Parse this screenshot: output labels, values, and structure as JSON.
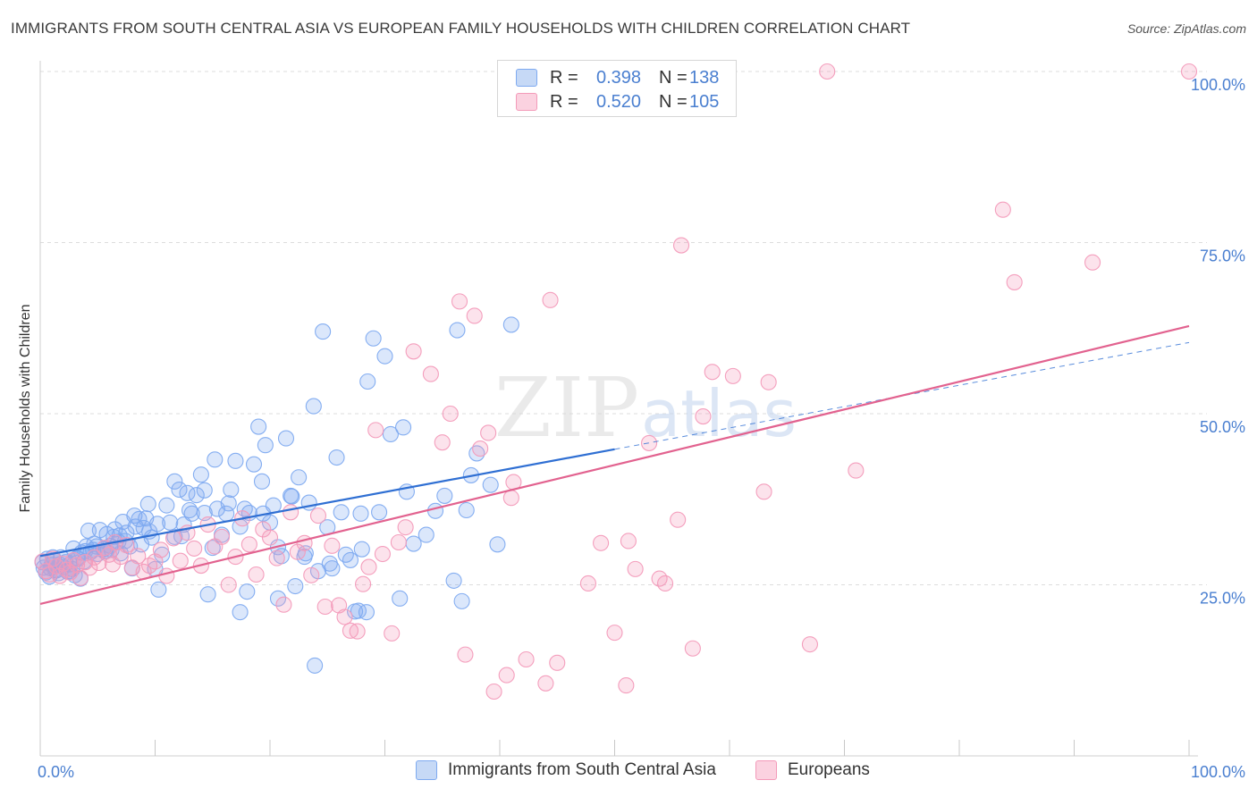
{
  "title": "IMMIGRANTS FROM SOUTH CENTRAL ASIA VS EUROPEAN FAMILY HOUSEHOLDS WITH CHILDREN CORRELATION CHART",
  "source": "Source: ZipAtlas.com",
  "watermark": {
    "zip": "ZIP",
    "atlas": "atlas"
  },
  "legend": {
    "rows": [
      {
        "r_label": "R = ",
        "r_value": "0.398",
        "n_label": "N = ",
        "n_value": "138",
        "color": "#7eaaf0"
      },
      {
        "r_label": "R = ",
        "r_value": "0.520",
        "n_label": "N = ",
        "n_value": "105",
        "color": "#f39ab9"
      }
    ]
  },
  "bottom_legend": {
    "series1": "Immigrants from South Central Asia",
    "series2": "Europeans"
  },
  "chart_data": {
    "type": "scatter",
    "title": "IMMIGRANTS FROM SOUTH CENTRAL ASIA VS EUROPEAN FAMILY HOUSEHOLDS WITH CHILDREN CORRELATION CHART",
    "xlabel": "",
    "ylabel": "Family Households with Children",
    "xlim": [
      0,
      100
    ],
    "ylim": [
      0,
      100
    ],
    "x_tick_labels": [
      "0.0%",
      "100.0%"
    ],
    "y_tick_labels": [
      "25.0%",
      "50.0%",
      "75.0%",
      "100.0%"
    ],
    "y_ticks": [
      25,
      50,
      75,
      100
    ],
    "grid": true,
    "legend_position": "top-center",
    "series": [
      {
        "name": "Immigrants from South Central Asia",
        "color": "#7eaaf0",
        "line_color": "#2f6fd3",
        "trend": {
          "x": [
            0,
            50
          ],
          "y": [
            29.2,
            44.8
          ],
          "dashed_extension_x": [
            50,
            100
          ],
          "dashed_extension_y": [
            44.8,
            60.4
          ]
        },
        "points": [
          [
            0.3,
            27.5
          ],
          [
            0.6,
            28.8
          ],
          [
            0.8,
            26.2
          ],
          [
            1.0,
            27.9
          ],
          [
            1.2,
            28.6
          ],
          [
            1.4,
            27.1
          ],
          [
            1.6,
            26.7
          ],
          [
            1.8,
            29.0
          ],
          [
            2.0,
            27.6
          ],
          [
            2.2,
            28.3
          ],
          [
            2.4,
            26.9
          ],
          [
            2.6,
            28.0
          ],
          [
            2.8,
            27.3
          ],
          [
            3.0,
            26.4
          ],
          [
            3.2,
            28.9
          ],
          [
            3.5,
            25.9
          ],
          [
            3.8,
            28.4
          ],
          [
            4.0,
            30.6
          ],
          [
            4.4,
            29.8
          ],
          [
            4.7,
            31.0
          ],
          [
            5.0,
            29.5
          ],
          [
            5.2,
            33.0
          ],
          [
            5.5,
            30.2
          ],
          [
            5.8,
            32.4
          ],
          [
            6.1,
            30.7
          ],
          [
            6.5,
            33.1
          ],
          [
            6.8,
            31.3
          ],
          [
            7.2,
            34.2
          ],
          [
            7.5,
            32.6
          ],
          [
            7.8,
            30.6
          ],
          [
            8.2,
            35.1
          ],
          [
            8.6,
            34.6
          ],
          [
            9.0,
            33.3
          ],
          [
            9.4,
            36.8
          ],
          [
            9.7,
            31.9
          ],
          [
            10.0,
            27.3
          ],
          [
            10.3,
            24.3
          ],
          [
            10.6,
            29.4
          ],
          [
            11.0,
            36.6
          ],
          [
            11.3,
            34.1
          ],
          [
            11.7,
            32.0
          ],
          [
            12.1,
            38.9
          ],
          [
            12.5,
            33.8
          ],
          [
            12.8,
            38.4
          ],
          [
            13.2,
            35.4
          ],
          [
            13.6,
            38.1
          ],
          [
            14.0,
            41.1
          ],
          [
            14.3,
            35.5
          ],
          [
            14.6,
            23.6
          ],
          [
            15.0,
            30.4
          ],
          [
            15.4,
            36.1
          ],
          [
            15.8,
            32.3
          ],
          [
            16.2,
            35.4
          ],
          [
            16.6,
            38.9
          ],
          [
            17.0,
            43.1
          ],
          [
            17.4,
            33.5
          ],
          [
            17.8,
            36.1
          ],
          [
            18.2,
            35.5
          ],
          [
            18.6,
            42.6
          ],
          [
            19.0,
            48.1
          ],
          [
            19.3,
            40.1
          ],
          [
            19.6,
            45.4
          ],
          [
            20.0,
            34.1
          ],
          [
            20.3,
            36.6
          ],
          [
            20.7,
            30.5
          ],
          [
            21.0,
            29.2
          ],
          [
            21.4,
            46.4
          ],
          [
            21.8,
            38.0
          ],
          [
            22.2,
            24.8
          ],
          [
            22.5,
            40.7
          ],
          [
            23.0,
            29.1
          ],
          [
            23.4,
            37.0
          ],
          [
            23.8,
            51.1
          ],
          [
            24.2,
            27.0
          ],
          [
            24.6,
            62.0
          ],
          [
            25.0,
            33.4
          ],
          [
            25.4,
            27.4
          ],
          [
            25.8,
            43.6
          ],
          [
            26.2,
            35.6
          ],
          [
            26.6,
            29.4
          ],
          [
            27.0,
            28.6
          ],
          [
            27.4,
            21.1
          ],
          [
            28.0,
            30.2
          ],
          [
            28.5,
            54.7
          ],
          [
            29.0,
            61.0
          ],
          [
            29.5,
            35.6
          ],
          [
            30.0,
            58.4
          ],
          [
            30.5,
            47.0
          ],
          [
            31.3,
            23.0
          ],
          [
            31.6,
            48.0
          ],
          [
            32.5,
            31.0
          ],
          [
            33.6,
            32.3
          ],
          [
            34.4,
            35.8
          ],
          [
            35.2,
            38.0
          ],
          [
            36.0,
            25.6
          ],
          [
            36.3,
            62.2
          ],
          [
            36.7,
            22.6
          ],
          [
            37.1,
            35.9
          ],
          [
            37.5,
            41.0
          ],
          [
            38.0,
            44.2
          ],
          [
            39.2,
            39.6
          ],
          [
            39.8,
            30.9
          ],
          [
            41.0,
            63.0
          ],
          [
            21.9,
            37.9
          ],
          [
            18.0,
            24.0
          ],
          [
            15.2,
            43.3
          ],
          [
            13.0,
            35.9
          ],
          [
            12.3,
            32.1
          ],
          [
            11.7,
            40.1
          ],
          [
            9.2,
            34.7
          ],
          [
            8.8,
            30.9
          ],
          [
            8.0,
            27.4
          ],
          [
            7.0,
            29.6
          ],
          [
            6.2,
            30.1
          ],
          [
            5.6,
            29.9
          ],
          [
            4.6,
            30.1
          ],
          [
            4.2,
            32.9
          ],
          [
            3.6,
            29.7
          ],
          [
            2.9,
            30.3
          ],
          [
            1.1,
            29.0
          ],
          [
            23.9,
            13.2
          ],
          [
            28.4,
            21.0
          ],
          [
            27.7,
            21.2
          ],
          [
            17.4,
            21.0
          ],
          [
            20.7,
            23.0
          ],
          [
            25.2,
            28.1
          ],
          [
            23.1,
            29.6
          ],
          [
            19.4,
            35.4
          ],
          [
            16.4,
            36.9
          ],
          [
            14.3,
            38.8
          ],
          [
            10.2,
            33.9
          ],
          [
            9.5,
            32.8
          ],
          [
            8.3,
            33.5
          ],
          [
            7.4,
            31.4
          ],
          [
            6.9,
            32.2
          ],
          [
            6.4,
            32.0
          ],
          [
            5.7,
            29.9
          ],
          [
            4.9,
            30.6
          ],
          [
            3.9,
            29.9
          ],
          [
            3.3,
            28.8
          ],
          [
            2.5,
            27.0
          ],
          [
            1.7,
            28.0
          ],
          [
            1.3,
            27.2
          ],
          [
            0.9,
            27.4
          ],
          [
            0.5,
            26.8
          ],
          [
            0.2,
            28.3
          ],
          [
            27.9,
            35.4
          ],
          [
            31.9,
            38.6
          ]
        ]
      },
      {
        "name": "Europeans",
        "color": "#f39ab9",
        "line_color": "#e2628f",
        "trend": {
          "x": [
            0,
            100
          ],
          "y": [
            22.2,
            62.8
          ]
        },
        "points": [
          [
            0.2,
            28.4
          ],
          [
            0.5,
            27.0
          ],
          [
            0.8,
            26.5
          ],
          [
            1.1,
            28.8
          ],
          [
            1.4,
            27.7
          ],
          [
            1.7,
            26.3
          ],
          [
            2.0,
            28.1
          ],
          [
            2.3,
            27.2
          ],
          [
            2.6,
            26.8
          ],
          [
            2.9,
            28.6
          ],
          [
            3.2,
            27.9
          ],
          [
            3.5,
            26.0
          ],
          [
            3.9,
            28.3
          ],
          [
            4.3,
            27.5
          ],
          [
            4.7,
            29.0
          ],
          [
            5.1,
            28.2
          ],
          [
            5.6,
            30.4
          ],
          [
            6.0,
            29.4
          ],
          [
            6.5,
            31.2
          ],
          [
            7.0,
            29.1
          ],
          [
            7.5,
            30.8
          ],
          [
            8.0,
            27.5
          ],
          [
            8.5,
            29.2
          ],
          [
            9.0,
            26.9
          ],
          [
            9.5,
            27.8
          ],
          [
            10.0,
            28.4
          ],
          [
            10.5,
            30.1
          ],
          [
            11.0,
            26.3
          ],
          [
            11.6,
            31.8
          ],
          [
            12.2,
            28.5
          ],
          [
            12.8,
            32.6
          ],
          [
            13.4,
            30.3
          ],
          [
            14.0,
            27.8
          ],
          [
            14.6,
            33.8
          ],
          [
            15.2,
            30.6
          ],
          [
            15.8,
            32.0
          ],
          [
            16.4,
            25.0
          ],
          [
            17.0,
            29.1
          ],
          [
            17.6,
            34.7
          ],
          [
            18.2,
            30.9
          ],
          [
            18.8,
            26.5
          ],
          [
            19.4,
            33.1
          ],
          [
            20.0,
            31.9
          ],
          [
            20.6,
            28.9
          ],
          [
            21.2,
            22.1
          ],
          [
            21.8,
            35.6
          ],
          [
            22.4,
            29.8
          ],
          [
            23.0,
            31.1
          ],
          [
            23.6,
            26.4
          ],
          [
            24.2,
            35.1
          ],
          [
            24.8,
            21.8
          ],
          [
            25.4,
            30.7
          ],
          [
            26.0,
            22.0
          ],
          [
            26.5,
            20.3
          ],
          [
            27.0,
            18.3
          ],
          [
            27.6,
            18.2
          ],
          [
            28.1,
            25.1
          ],
          [
            28.6,
            27.6
          ],
          [
            29.2,
            47.6
          ],
          [
            29.8,
            29.5
          ],
          [
            30.6,
            17.9
          ],
          [
            31.2,
            31.2
          ],
          [
            31.8,
            33.4
          ],
          [
            32.5,
            59.1
          ],
          [
            34.0,
            55.8
          ],
          [
            35.0,
            45.8
          ],
          [
            35.7,
            50.0
          ],
          [
            36.5,
            66.4
          ],
          [
            37.0,
            14.8
          ],
          [
            37.8,
            64.3
          ],
          [
            38.3,
            44.9
          ],
          [
            39.0,
            47.2
          ],
          [
            39.5,
            9.4
          ],
          [
            40.6,
            11.8
          ],
          [
            41.0,
            37.7
          ],
          [
            41.2,
            40.0
          ],
          [
            42.3,
            14.1
          ],
          [
            44.0,
            10.6
          ],
          [
            44.4,
            66.6
          ],
          [
            45.0,
            13.6
          ],
          [
            47.7,
            25.2
          ],
          [
            48.8,
            31.1
          ],
          [
            50.0,
            18.0
          ],
          [
            51.0,
            10.3
          ],
          [
            51.2,
            31.4
          ],
          [
            51.8,
            27.3
          ],
          [
            53.0,
            45.7
          ],
          [
            53.9,
            25.9
          ],
          [
            54.4,
            25.2
          ],
          [
            55.5,
            34.5
          ],
          [
            55.8,
            74.6
          ],
          [
            56.8,
            15.7
          ],
          [
            57.7,
            49.6
          ],
          [
            58.5,
            56.1
          ],
          [
            60.3,
            55.5
          ],
          [
            63.0,
            38.6
          ],
          [
            63.4,
            54.6
          ],
          [
            67.0,
            16.3
          ],
          [
            68.5,
            100.0
          ],
          [
            71.0,
            41.7
          ],
          [
            83.8,
            79.8
          ],
          [
            84.8,
            69.2
          ],
          [
            91.6,
            72.1
          ],
          [
            100.0,
            100.0
          ],
          [
            6.3,
            28.0
          ]
        ]
      }
    ]
  }
}
